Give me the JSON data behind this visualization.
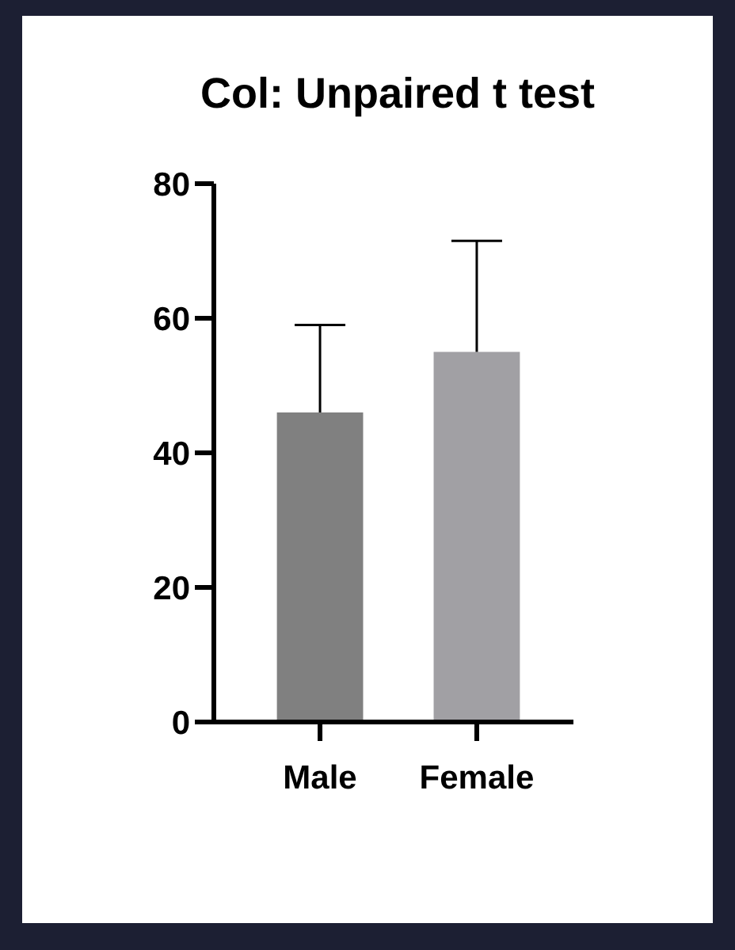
{
  "chart_data": {
    "type": "bar",
    "title": "Col: Unpaired t test",
    "categories": [
      "Male",
      "Female"
    ],
    "values": [
      46,
      55
    ],
    "colors": [
      "#808080",
      "#a1a0a4"
    ],
    "errors": [
      [
        46,
        59
      ],
      [
        55,
        71.5
      ]
    ],
    "ylim": [
      0,
      80
    ],
    "yticks": [
      0,
      20,
      40,
      60,
      80
    ],
    "grid": false
  }
}
